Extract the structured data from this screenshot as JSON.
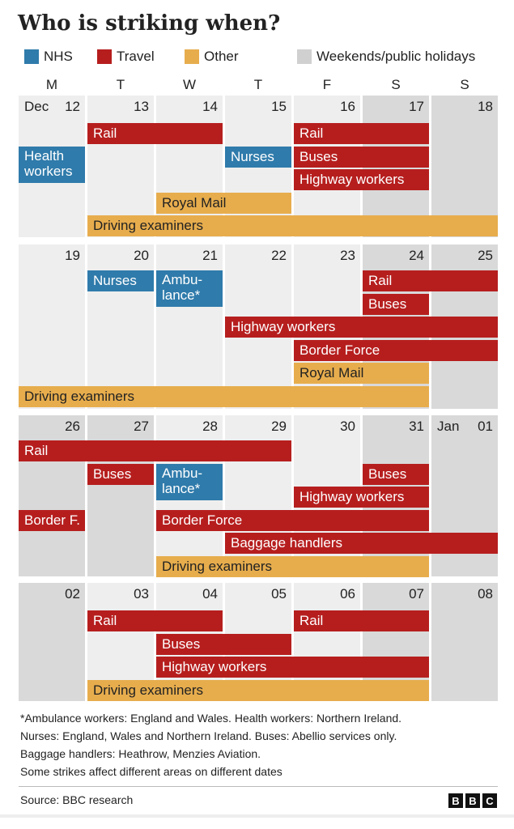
{
  "title": "Who is striking when?",
  "legend": [
    {
      "label": "NHS",
      "color": "#2f7bab"
    },
    {
      "label": "Travel",
      "color": "#b61e1e"
    },
    {
      "label": "Other",
      "color": "#e7ad4d"
    },
    {
      "label": "Weekends/public holidays",
      "color": "#d0d0d0"
    }
  ],
  "day_headers": [
    "M",
    "T",
    "W",
    "T",
    "F",
    "S",
    "S"
  ],
  "colors": {
    "NHS": "#2f7bab",
    "Travel": "#b61e1e",
    "Other": "#e7ad4d",
    "cell": "#eeeeee",
    "weekend": "#d9d9d9"
  },
  "chart_data": {
    "type": "table",
    "title": "Who is striking when?",
    "weeks": [
      {
        "days": [
          {
            "num": "12",
            "month": "Dec",
            "holiday": false
          },
          {
            "num": "13",
            "holiday": false
          },
          {
            "num": "14",
            "holiday": false
          },
          {
            "num": "15",
            "holiday": false
          },
          {
            "num": "16",
            "holiday": false
          },
          {
            "num": "17",
            "holiday": true
          },
          {
            "num": "18",
            "holiday": true
          }
        ],
        "strikes": [
          {
            "label": "Rail",
            "category": "Travel",
            "start": "13",
            "end": "14",
            "row": 0
          },
          {
            "label": "Rail",
            "category": "Travel",
            "start": "16",
            "end": "17",
            "row": 0
          },
          {
            "label": "Health workers",
            "category": "NHS",
            "start": "12",
            "end": "12",
            "row": 1,
            "tall": true
          },
          {
            "label": "Nurses",
            "category": "NHS",
            "start": "15",
            "end": "15",
            "row": 1
          },
          {
            "label": "Buses",
            "category": "Travel",
            "start": "16",
            "end": "17",
            "row": 1
          },
          {
            "label": "Highway workers",
            "category": "Travel",
            "start": "16",
            "end": "17",
            "row": 2
          },
          {
            "label": "Royal Mail",
            "category": "Other",
            "start": "14",
            "end": "15",
            "row": 3
          },
          {
            "label": "Driving examiners",
            "category": "Other",
            "start": "13",
            "end": "18",
            "row": 4
          }
        ]
      },
      {
        "days": [
          {
            "num": "19",
            "holiday": false
          },
          {
            "num": "20",
            "holiday": false
          },
          {
            "num": "21",
            "holiday": false
          },
          {
            "num": "22",
            "holiday": false
          },
          {
            "num": "23",
            "holiday": false
          },
          {
            "num": "24",
            "holiday": true
          },
          {
            "num": "25",
            "holiday": true
          }
        ],
        "strikes": [
          {
            "label": "Nurses",
            "category": "NHS",
            "start": "20",
            "end": "20",
            "row": 0
          },
          {
            "label": "Ambu-lance*",
            "category": "NHS",
            "start": "21",
            "end": "21",
            "row": 0,
            "tall": true
          },
          {
            "label": "Rail",
            "category": "Travel",
            "start": "24",
            "end": "25",
            "row": 0
          },
          {
            "label": "Buses",
            "category": "Travel",
            "start": "24",
            "end": "24",
            "row": 1
          },
          {
            "label": "Highway workers",
            "category": "Travel",
            "start": "22",
            "end": "25",
            "row": 2
          },
          {
            "label": "Border Force",
            "category": "Travel",
            "start": "23",
            "end": "25",
            "row": 3
          },
          {
            "label": "Royal Mail",
            "category": "Other",
            "start": "23",
            "end": "24",
            "row": 4
          },
          {
            "label": "Driving examiners",
            "category": "Other",
            "start": "19",
            "end": "24",
            "row": 5
          }
        ]
      },
      {
        "days": [
          {
            "num": "26",
            "holiday": true
          },
          {
            "num": "27",
            "holiday": true
          },
          {
            "num": "28",
            "holiday": false
          },
          {
            "num": "29",
            "holiday": false
          },
          {
            "num": "30",
            "holiday": false
          },
          {
            "num": "31",
            "holiday": true
          },
          {
            "num": "01",
            "month": "Jan",
            "holiday": true
          }
        ],
        "strikes": [
          {
            "label": "Rail",
            "category": "Travel",
            "start": "26",
            "end": "29",
            "row": 0
          },
          {
            "label": "Buses",
            "category": "Travel",
            "start": "27",
            "end": "27",
            "row": 1
          },
          {
            "label": "Ambu-lance*",
            "category": "NHS",
            "start": "28",
            "end": "28",
            "row": 1,
            "tall": true
          },
          {
            "label": "Buses",
            "category": "Travel",
            "start": "31",
            "end": "31",
            "row": 1
          },
          {
            "label": "Highway workers",
            "category": "Travel",
            "start": "30",
            "end": "31",
            "row": 2
          },
          {
            "label": "Border F.",
            "category": "Travel",
            "start": "26",
            "end": "26",
            "row": 3
          },
          {
            "label": "Border Force",
            "category": "Travel",
            "start": "28",
            "end": "31",
            "row": 3
          },
          {
            "label": "Baggage handlers",
            "category": "Travel",
            "start": "29",
            "end": "01",
            "row": 4
          },
          {
            "label": "Driving examiners",
            "category": "Other",
            "start": "28",
            "end": "31",
            "row": 5
          }
        ]
      },
      {
        "days": [
          {
            "num": "02",
            "holiday": true
          },
          {
            "num": "03",
            "holiday": false
          },
          {
            "num": "04",
            "holiday": false
          },
          {
            "num": "05",
            "holiday": false
          },
          {
            "num": "06",
            "holiday": false
          },
          {
            "num": "07",
            "holiday": true
          },
          {
            "num": "08",
            "holiday": true
          }
        ],
        "strikes": [
          {
            "label": "Rail",
            "category": "Travel",
            "start": "03",
            "end": "04",
            "row": 0
          },
          {
            "label": "Rail",
            "category": "Travel",
            "start": "06",
            "end": "07",
            "row": 0
          },
          {
            "label": "Buses",
            "category": "Travel",
            "start": "04",
            "end": "05",
            "row": 1
          },
          {
            "label": "Highway workers",
            "category": "Travel",
            "start": "04",
            "end": "07",
            "row": 2
          },
          {
            "label": "Driving examiners",
            "category": "Other",
            "start": "03",
            "end": "07",
            "row": 3
          }
        ]
      }
    ]
  },
  "notes": [
    "*Ambulance workers: England and Wales. Health workers: Northern Ireland.",
    "Nurses: England, Wales and Northern Ireland. Buses: Abellio services only.",
    "Baggage handlers: Heathrow, Menzies Aviation.",
    "Some strikes affect different areas on different dates"
  ],
  "source": "Source: BBC research",
  "logo_letters": [
    "B",
    "B",
    "C"
  ]
}
